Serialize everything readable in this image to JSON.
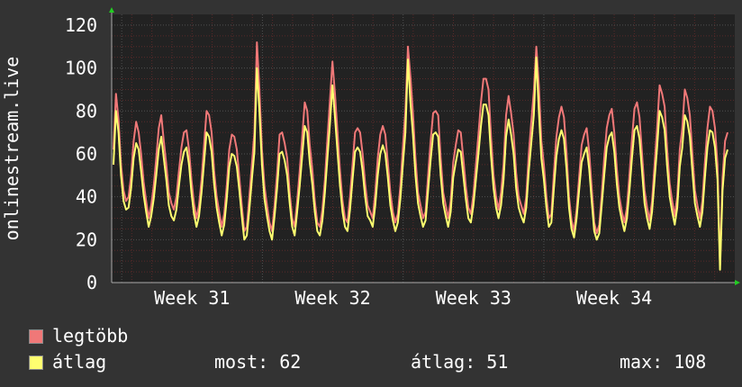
{
  "colors": {
    "background": "#333333",
    "plot_background": "#222222",
    "grid_minor": "#5a2a2a",
    "grid_major": "#505050",
    "axis_arrow": "#22cc22",
    "series_max": "#f07878",
    "series_avg": "#ffff70"
  },
  "chart_data": {
    "type": "line",
    "ylabel": "onlinestream.live",
    "ylim": [
      0,
      125
    ],
    "y_ticks": [
      "0",
      "20",
      "40",
      "60",
      "80",
      "100",
      "120"
    ],
    "x_tick_labels": [
      "Week 31",
      "Week 32",
      "Week 33",
      "Week 34"
    ],
    "grid": true,
    "legend_placement": "bottom-left",
    "series": [
      {
        "name": "legtöbb",
        "color": "#f07878",
        "values": [
          62,
          88,
          76,
          55,
          43,
          38,
          40,
          50,
          66,
          75,
          70,
          60,
          47,
          38,
          30,
          36,
          45,
          58,
          72,
          78,
          66,
          55,
          42,
          37,
          34,
          40,
          52,
          63,
          70,
          71,
          62,
          48,
          37,
          30,
          36,
          48,
          64,
          80,
          78,
          70,
          52,
          40,
          33,
          26,
          32,
          45,
          62,
          69,
          68,
          62,
          49,
          36,
          24,
          26,
          40,
          55,
          70,
          112,
          90,
          62,
          45,
          36,
          28,
          24,
          36,
          51,
          69,
          70,
          65,
          58,
          42,
          30,
          26,
          38,
          52,
          68,
          84,
          80,
          64,
          53,
          38,
          28,
          26,
          34,
          48,
          67,
          85,
          103,
          88,
          70,
          52,
          38,
          30,
          28,
          40,
          55,
          70,
          72,
          70,
          60,
          46,
          36,
          33,
          30,
          42,
          58,
          69,
          73,
          69,
          56,
          42,
          33,
          28,
          32,
          45,
          63,
          80,
          110,
          96,
          79,
          58,
          42,
          36,
          30,
          33,
          50,
          66,
          79,
          80,
          78,
          58,
          42,
          36,
          30,
          38,
          56,
          64,
          71,
          70,
          58,
          45,
          35,
          32,
          41,
          55,
          69,
          84,
          95,
          95,
          90,
          68,
          50,
          40,
          34,
          42,
          55,
          78,
          87,
          79,
          69,
          51,
          40,
          36,
          32,
          40,
          60,
          75,
          89,
          110,
          92,
          66,
          55,
          40,
          30,
          32,
          51,
          68,
          77,
          82,
          77,
          61,
          40,
          29,
          24,
          34,
          49,
          64,
          69,
          72,
          61,
          44,
          28,
          23,
          27,
          41,
          58,
          72,
          78,
          81,
          70,
          53,
          40,
          33,
          28,
          35,
          50,
          67,
          81,
          84,
          77,
          60,
          43,
          35,
          29,
          38,
          55,
          72,
          92,
          88,
          82,
          62,
          46,
          38,
          31,
          40,
          62,
          72,
          90,
          86,
          78,
          60,
          43,
          36,
          30,
          38,
          56,
          72,
          82,
          80,
          72,
          55,
          8,
          49,
          66,
          70
        ]
      },
      {
        "name": "átlag",
        "color": "#ffff70",
        "values": [
          55,
          80,
          70,
          50,
          38,
          34,
          35,
          44,
          58,
          65,
          62,
          52,
          41,
          33,
          26,
          31,
          39,
          50,
          62,
          68,
          58,
          48,
          36,
          31,
          29,
          34,
          45,
          55,
          61,
          63,
          55,
          42,
          32,
          26,
          31,
          42,
          56,
          70,
          68,
          61,
          46,
          35,
          28,
          22,
          27,
          39,
          54,
          60,
          59,
          54,
          43,
          31,
          20,
          22,
          34,
          48,
          61,
          100,
          80,
          55,
          39,
          31,
          24,
          20,
          31,
          44,
          60,
          61,
          57,
          50,
          37,
          26,
          22,
          33,
          45,
          59,
          73,
          70,
          56,
          46,
          33,
          24,
          22,
          29,
          42,
          58,
          74,
          92,
          77,
          61,
          45,
          33,
          26,
          24,
          34,
          48,
          61,
          63,
          61,
          52,
          40,
          31,
          29,
          26,
          36,
          50,
          60,
          64,
          60,
          49,
          36,
          29,
          24,
          28,
          39,
          55,
          70,
          104,
          84,
          69,
          50,
          37,
          31,
          26,
          29,
          43,
          57,
          69,
          70,
          68,
          50,
          37,
          31,
          26,
          33,
          49,
          56,
          62,
          61,
          50,
          39,
          30,
          28,
          36,
          48,
          60,
          73,
          83,
          83,
          78,
          59,
          44,
          35,
          30,
          36,
          48,
          68,
          76,
          69,
          60,
          44,
          35,
          31,
          28,
          35,
          52,
          65,
          78,
          105,
          80,
          58,
          48,
          35,
          26,
          28,
          44,
          59,
          67,
          71,
          67,
          53,
          35,
          25,
          21,
          30,
          43,
          56,
          60,
          63,
          53,
          38,
          24,
          20,
          23,
          36,
          50,
          63,
          68,
          70,
          61,
          46,
          35,
          29,
          24,
          30,
          43,
          58,
          71,
          73,
          67,
          52,
          37,
          30,
          25,
          33,
          48,
          63,
          80,
          77,
          71,
          54,
          40,
          33,
          27,
          35,
          54,
          63,
          78,
          75,
          68,
          52,
          37,
          31,
          26,
          33,
          49,
          63,
          71,
          70,
          63,
          48,
          6,
          43,
          58,
          62
        ]
      }
    ]
  },
  "legend": {
    "max_label": "legtöbb",
    "avg_label": "átlag",
    "stats": {
      "now": "most: 62",
      "average": "átlag: 51",
      "max": "max: 108"
    }
  }
}
